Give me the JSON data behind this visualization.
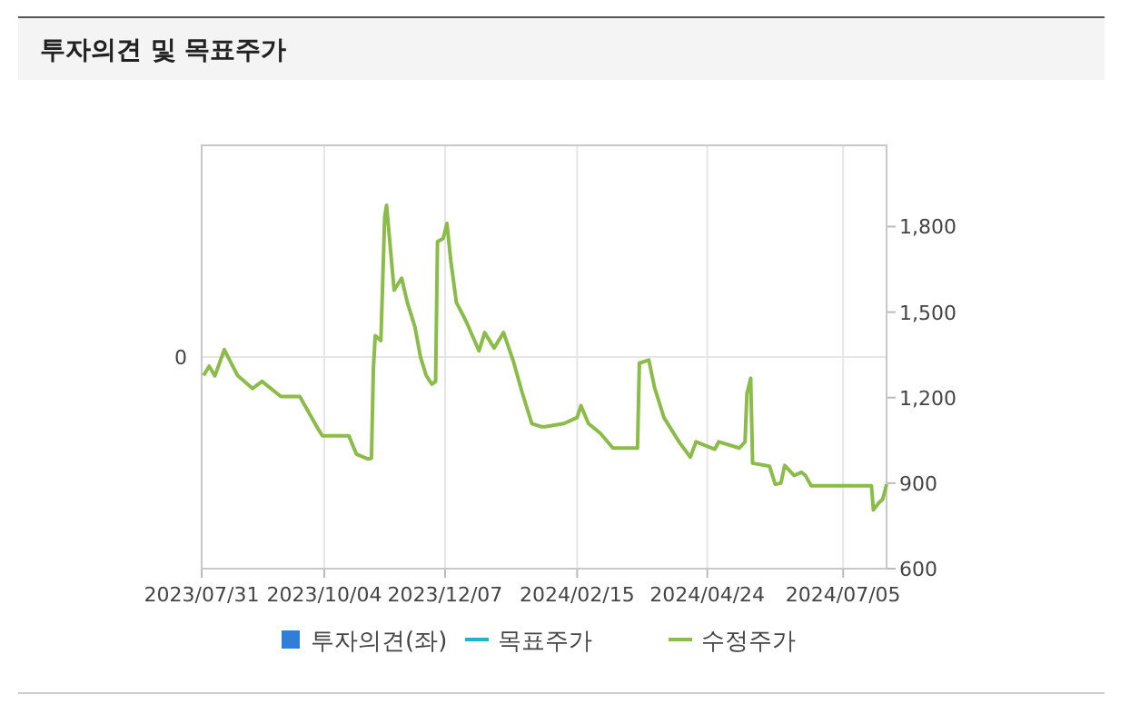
{
  "chart_data": {
    "type": "line",
    "title": "투자의견 및 목표주가",
    "x": [
      "2023-08-01",
      "2023-08-04",
      "2023-08-07",
      "2023-08-12",
      "2023-08-19",
      "2023-08-27",
      "2023-09-01",
      "2023-09-11",
      "2023-09-21",
      "2023-10-01",
      "2023-10-03",
      "2023-10-17",
      "2023-10-21",
      "2023-10-27",
      "2023-10-29",
      "2023-10-30",
      "2023-10-31",
      "2023-11-03",
      "2023-11-05",
      "2023-11-06",
      "2023-11-08",
      "2023-11-10",
      "2023-11-14",
      "2023-11-17",
      "2023-11-21",
      "2023-11-24",
      "2023-11-27",
      "2023-11-30",
      "2023-12-02",
      "2023-12-03",
      "2023-12-06",
      "2023-12-08",
      "2023-12-10",
      "2023-12-13",
      "2023-12-18",
      "2023-12-25",
      "2023-12-28",
      "2024-01-02",
      "2024-01-07",
      "2024-01-12",
      "2024-01-17",
      "2024-01-22",
      "2024-01-27",
      "2024-01-29",
      "2024-02-08",
      "2024-02-15",
      "2024-02-17",
      "2024-02-21",
      "2024-02-27",
      "2024-03-05",
      "2024-03-18",
      "2024-03-19",
      "2024-03-24",
      "2024-03-27",
      "2024-04-01",
      "2024-04-09",
      "2024-04-15",
      "2024-04-18",
      "2024-04-28",
      "2024-04-30",
      "2024-05-11",
      "2024-05-14",
      "2024-05-15",
      "2024-05-17",
      "2024-05-18",
      "2024-05-27",
      "2024-05-30",
      "2024-06-02",
      "2024-06-04",
      "2024-06-09",
      "2024-06-13",
      "2024-06-15",
      "2024-06-18",
      "2024-07-20",
      "2024-07-21",
      "2024-07-24",
      "2024-07-26",
      "2024-07-28"
    ],
    "series": [
      {
        "name": "투자의견(좌)",
        "type": "bar",
        "color": "#2f7ed8",
        "axis": "y",
        "values": [
          null,
          null,
          null,
          null,
          null,
          null,
          null,
          null,
          null,
          null,
          null,
          null,
          null,
          null,
          null,
          null,
          null,
          null,
          null,
          null,
          null,
          null,
          null,
          null,
          null,
          null,
          null,
          null,
          null,
          null,
          null,
          null,
          null,
          null,
          null,
          null,
          null,
          null,
          null,
          null,
          null,
          null,
          null,
          null,
          null,
          null,
          null,
          null,
          null,
          null,
          null,
          null,
          null,
          null,
          null,
          null,
          null,
          null,
          null,
          null,
          null,
          null,
          null,
          null,
          null,
          null,
          null,
          null,
          null,
          null,
          null,
          null,
          null,
          null,
          null,
          null,
          null,
          null
        ]
      },
      {
        "name": "목표주가",
        "type": "line",
        "color": "#1fb5c8",
        "axis": "y2",
        "values": [
          null,
          null,
          null,
          null,
          null,
          null,
          null,
          null,
          null,
          null,
          null,
          null,
          null,
          null,
          null,
          null,
          null,
          null,
          null,
          null,
          null,
          null,
          null,
          null,
          null,
          null,
          null,
          null,
          null,
          null,
          null,
          null,
          null,
          null,
          null,
          null,
          null,
          null,
          null,
          null,
          null,
          null,
          null,
          null,
          null,
          null,
          null,
          null,
          null,
          null,
          null,
          null,
          null,
          null,
          null,
          null,
          null,
          null,
          null,
          null,
          null,
          null,
          null,
          null,
          null,
          null,
          null,
          null,
          null,
          null,
          null,
          null,
          null,
          null,
          null,
          null,
          null,
          null
        ]
      },
      {
        "name": "수정주가",
        "color": "#8bbc4a",
        "axis": "y2",
        "values": [
          1278,
          1310,
          1276,
          1368,
          1278,
          1232,
          1257,
          1204,
          1204,
          1087,
          1066,
          1066,
          1002,
          985,
          987,
          1300,
          1417,
          1400,
          1832,
          1875,
          1726,
          1577,
          1619,
          1534,
          1449,
          1342,
          1278,
          1247,
          1257,
          1747,
          1758,
          1811,
          1683,
          1534,
          1470,
          1364,
          1428,
          1374,
          1428,
          1332,
          1215,
          1109,
          1098,
          1098,
          1109,
          1130,
          1172,
          1109,
          1077,
          1023,
          1023,
          1321,
          1332,
          1236,
          1130,
          1045,
          991,
          1045,
          1019,
          1045,
          1023,
          1045,
          1215,
          1268,
          970,
          959,
          896,
          900,
          962,
          927,
          938,
          927,
          891,
          891,
          806,
          832,
          844,
          896
        ]
      }
    ],
    "xlim": [
      "2023-07-31",
      "2024-07-28"
    ],
    "xticks": [
      {
        "value": "2023-07-31",
        "label": "2023/07/31"
      },
      {
        "value": "2023-10-04",
        "label": "2023/10/04"
      },
      {
        "value": "2023-12-07",
        "label": "2023/12/07"
      },
      {
        "value": "2024-02-15",
        "label": "2024/02/15"
      },
      {
        "value": "2024-04-24",
        "label": "2024/04/24"
      },
      {
        "value": "2024-07-05",
        "label": "2024/07/05"
      }
    ],
    "annotations": [
      "0"
    ],
    "y2lim": [
      600,
      2085
    ],
    "y2ticks": [
      {
        "value": 600,
        "label": "600"
      },
      {
        "value": 900,
        "label": "900"
      },
      {
        "value": 1200,
        "label": "1,200"
      },
      {
        "value": 1500,
        "label": "1,500"
      },
      {
        "value": 1800,
        "label": "1,800"
      }
    ],
    "grid": true,
    "legend": "bottom",
    "marker": "none",
    "line_style": "solid"
  }
}
